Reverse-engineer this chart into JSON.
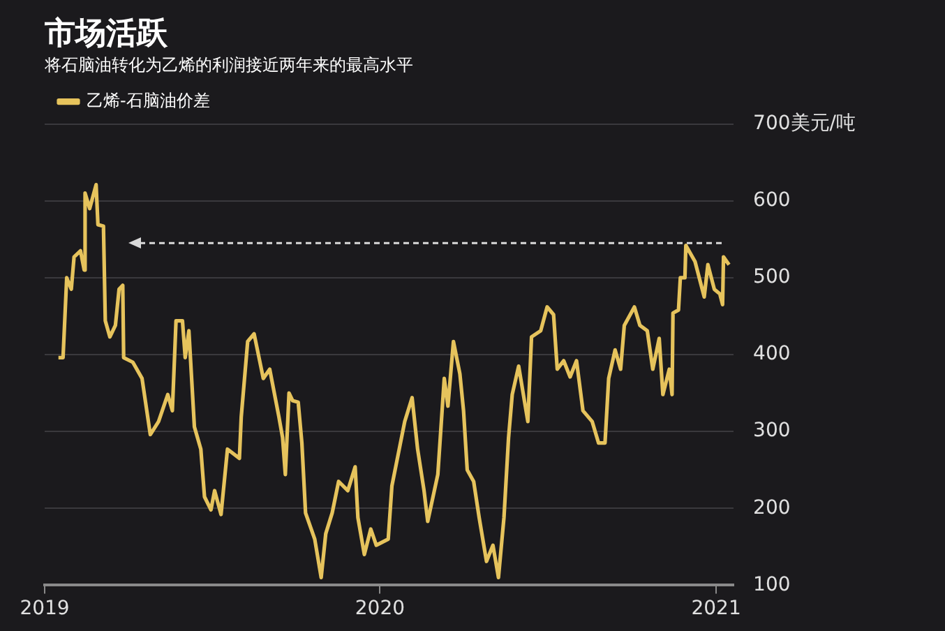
{
  "chart_data": {
    "type": "line",
    "title": "市场活跃",
    "subtitle": "将石脑油转化为乙烯的利润接近两年来的最高水平",
    "legend": "top left",
    "grid": "y",
    "xlim": [
      "2019-01-01",
      "2021-01-20"
    ],
    "xticks": [
      "2019",
      "2020",
      "2021"
    ],
    "ylim": [
      100,
      700
    ],
    "yticks": [
      100,
      200,
      300,
      400,
      500,
      600,
      {
        "value": 700,
        "label": "700美元/吨"
      }
    ],
    "ref_lines": [
      {
        "axis": "y",
        "value": 545,
        "color": "#d9d9d9",
        "line_style": "dashed"
      }
    ],
    "series": [
      {
        "name": "乙烯-石脑油价差",
        "color": "#e6c35c",
        "x": [
          "2019-01-16",
          "2019-01-21",
          "2019-01-25",
          "2019-01-30",
          "2019-02-02",
          "2019-02-09",
          "2019-02-13",
          "2019-02-14",
          "2019-02-19",
          "2019-02-26",
          "2019-02-28",
          "2019-03-06",
          "2019-03-08",
          "2019-03-13",
          "2019-03-19",
          "2019-03-23",
          "2019-03-27",
          "2019-03-28",
          "2019-04-07",
          "2019-04-17",
          "2019-04-26",
          "2019-05-05",
          "2019-05-15",
          "2019-05-20",
          "2019-05-24",
          "2019-05-31",
          "2019-06-03",
          "2019-06-07",
          "2019-06-13",
          "2019-06-20",
          "2019-06-24",
          "2019-07-01",
          "2019-07-05",
          "2019-07-12",
          "2019-07-19",
          "2019-08-01",
          "2019-08-03",
          "2019-08-10",
          "2019-08-17",
          "2019-08-27",
          "2019-09-03",
          "2019-09-13",
          "2019-09-17",
          "2019-09-20",
          "2019-09-24",
          "2019-09-28",
          "2019-10-04",
          "2019-10-08",
          "2019-10-12",
          "2019-10-22",
          "2019-10-29",
          "2019-11-03",
          "2019-11-10",
          "2019-11-17",
          "2019-11-27",
          "2019-12-05",
          "2019-12-08",
          "2019-12-15",
          "2019-12-22",
          "2019-12-28",
          "2020-01-10",
          "2020-01-14",
          "2020-01-28",
          "2020-02-05",
          "2020-02-11",
          "2020-02-18",
          "2020-02-22",
          "2020-03-04",
          "2020-03-11",
          "2020-03-15",
          "2020-03-21",
          "2020-03-28",
          "2020-04-01",
          "2020-04-05",
          "2020-04-12",
          "2020-04-18",
          "2020-04-26",
          "2020-05-03",
          "2020-05-09",
          "2020-05-15",
          "2020-05-20",
          "2020-05-24",
          "2020-05-31",
          "2020-06-10",
          "2020-06-14",
          "2020-06-24",
          "2020-07-01",
          "2020-07-08",
          "2020-07-12",
          "2020-07-19",
          "2020-07-26",
          "2020-08-02",
          "2020-08-09",
          "2020-08-19",
          "2020-08-26",
          "2020-09-02",
          "2020-09-06",
          "2020-09-13",
          "2020-09-19",
          "2020-09-23",
          "2020-10-04",
          "2020-10-10",
          "2020-10-18",
          "2020-10-24",
          "2020-10-31",
          "2020-11-04",
          "2020-11-11",
          "2020-11-14",
          "2020-11-15",
          "2020-11-21",
          "2020-11-23",
          "2020-11-28",
          "2020-11-29",
          "2020-12-09",
          "2020-12-19",
          "2020-12-23",
          "2020-12-30",
          "2021-01-05",
          "2021-01-08",
          "2021-01-09",
          "2021-01-15"
        ],
        "values": [
          396,
          396,
          500,
          485,
          527,
          535,
          510,
          610,
          590,
          621,
          569,
          567,
          444,
          423,
          438,
          485,
          490,
          396,
          390,
          369,
          296,
          313,
          348,
          327,
          444,
          444,
          396,
          431,
          306,
          277,
          215,
          198,
          223,
          192,
          277,
          265,
          319,
          417,
          427,
          369,
          381,
          319,
          292,
          244,
          350,
          340,
          338,
          285,
          194,
          160,
          110,
          167,
          194,
          235,
          223,
          254,
          188,
          140,
          173,
          152,
          160,
          229,
          313,
          344,
          277,
          223,
          183,
          244,
          369,
          333,
          417,
          375,
          327,
          250,
          235,
          188,
          131,
          152,
          110,
          188,
          292,
          348,
          385,
          313,
          423,
          431,
          462,
          452,
          381,
          392,
          371,
          392,
          327,
          313,
          285,
          285,
          369,
          406,
          381,
          438,
          462,
          438,
          431,
          381,
          421,
          348,
          381,
          348,
          454,
          458,
          500,
          500,
          542,
          521,
          475,
          517,
          485,
          479,
          465,
          527,
          517
        ]
      }
    ]
  }
}
